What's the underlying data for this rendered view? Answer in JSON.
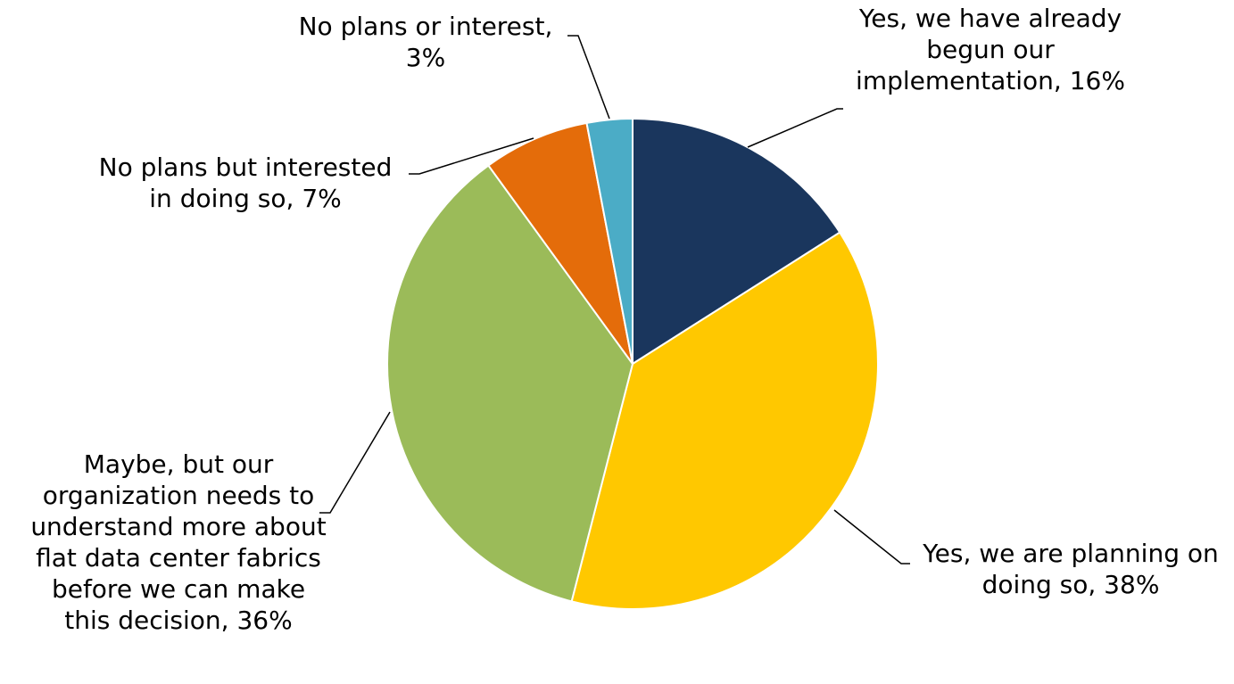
{
  "chart_data": {
    "type": "pie",
    "title": "",
    "start_angle_deg": 0,
    "direction": "clockwise",
    "slices": [
      {
        "label_lines": [
          "Yes, we have already",
          "begun our",
          "implementation, 16%"
        ],
        "value": 16,
        "color": "#1a365d"
      },
      {
        "label_lines": [
          "Yes, we are planning on",
          "doing so, 38%"
        ],
        "value": 38,
        "color": "#ffc800"
      },
      {
        "label_lines": [
          "Maybe, but our",
          "organization needs to",
          "understand more about",
          "flat data center fabrics",
          "before we can make",
          "this decision, 36%"
        ],
        "value": 36,
        "color": "#9bbb59"
      },
      {
        "label_lines": [
          "No plans but interested",
          "in doing so, 7%"
        ],
        "value": 7,
        "color": "#e46c0a"
      },
      {
        "label_lines": [
          "No plans or interest,",
          "3%"
        ],
        "value": 3,
        "color": "#4bacc6"
      }
    ]
  }
}
